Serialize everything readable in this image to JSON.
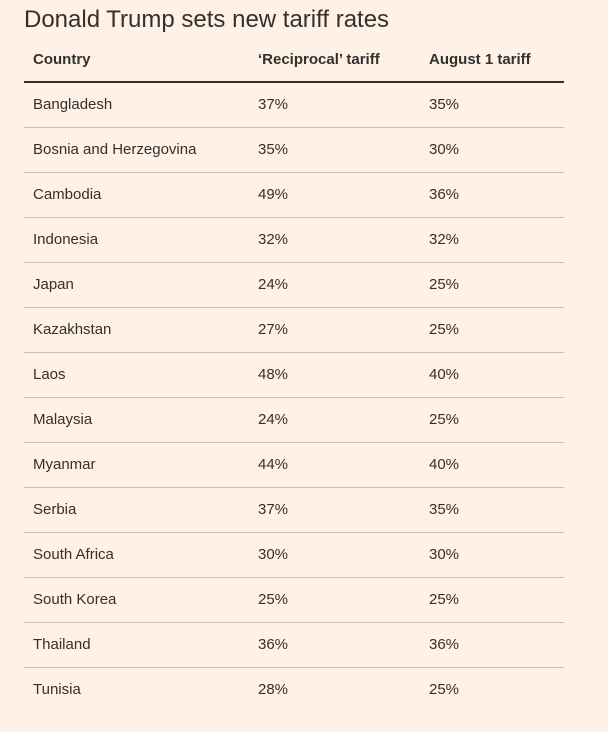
{
  "chart_data": {
    "type": "table",
    "title": "Donald Trump sets new tariff rates",
    "columns": [
      "Country",
      "‘Reciprocal’ tariff",
      "August 1 tariff"
    ],
    "rows": [
      [
        "Bangladesh",
        "37%",
        "35%"
      ],
      [
        "Bosnia and Herzegovina",
        "35%",
        "30%"
      ],
      [
        "Cambodia",
        "49%",
        "36%"
      ],
      [
        "Indonesia",
        "32%",
        "32%"
      ],
      [
        "Japan",
        "24%",
        "25%"
      ],
      [
        "Kazakhstan",
        "27%",
        "25%"
      ],
      [
        "Laos",
        "48%",
        "40%"
      ],
      [
        "Malaysia",
        "24%",
        "25%"
      ],
      [
        "Myanmar",
        "44%",
        "40%"
      ],
      [
        "Serbia",
        "37%",
        "35%"
      ],
      [
        "South Africa",
        "30%",
        "30%"
      ],
      [
        "South Korea",
        "25%",
        "25%"
      ],
      [
        "Thailand",
        "36%",
        "36%"
      ],
      [
        "Tunisia",
        "28%",
        "25%"
      ]
    ]
  }
}
